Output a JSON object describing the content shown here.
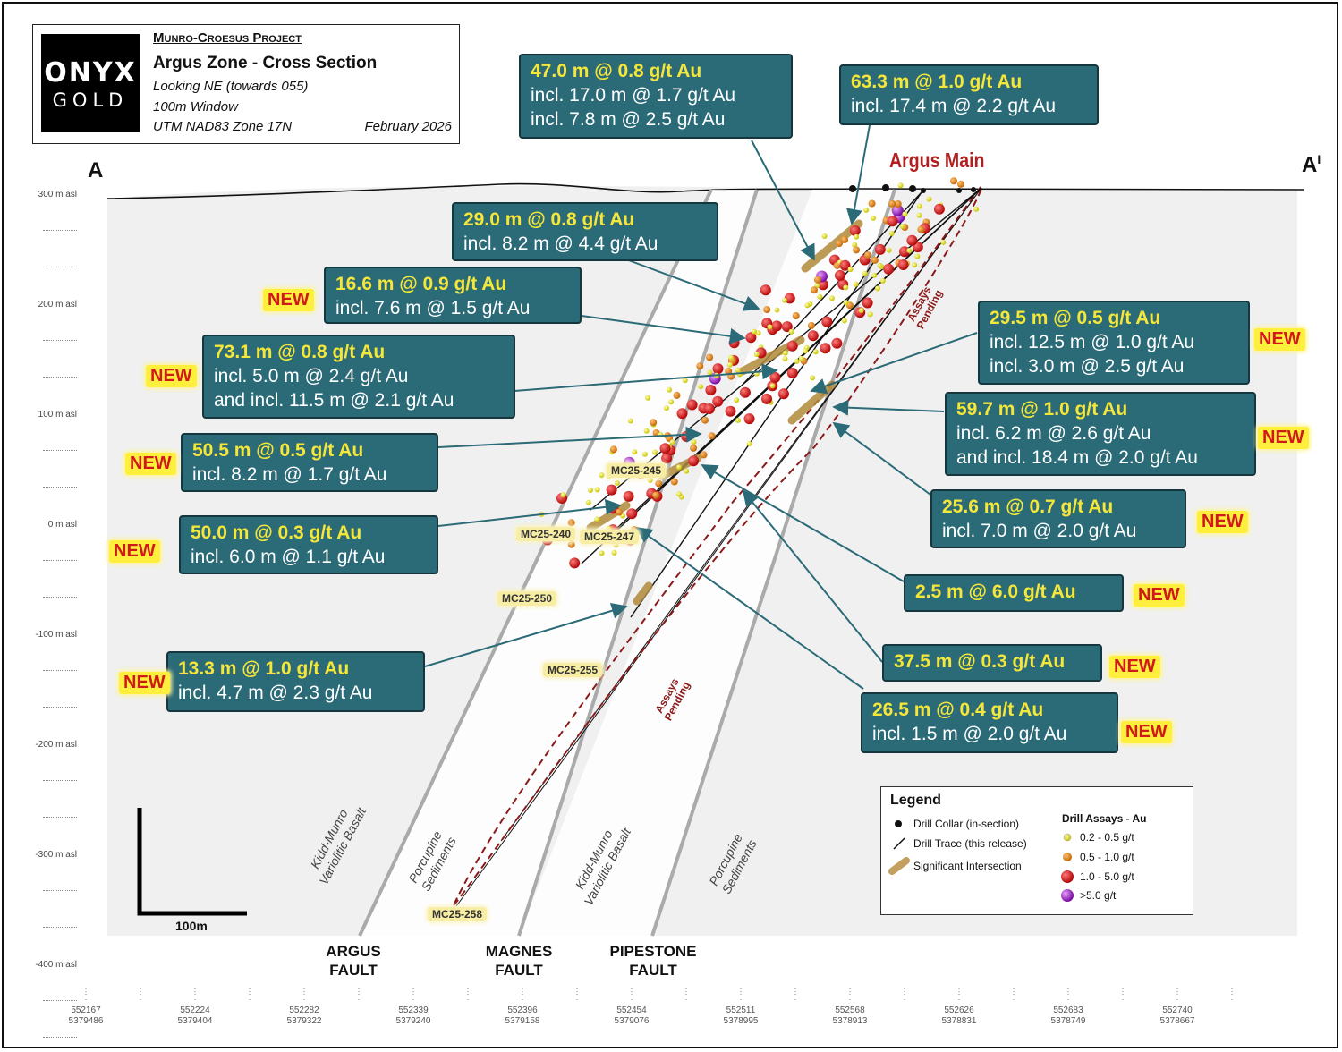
{
  "title_block": {
    "logo_line1": "ONYX",
    "logo_line2": "GOLD",
    "project": "Munro-Croesus Project",
    "title": "Argus Zone - Cross Section",
    "line1": "Looking NE (towards 055)",
    "line2": "100m Window",
    "line3": "UTM NAD83 Zone 17N",
    "date": "February 2026"
  },
  "section": {
    "left": "A",
    "right": "A",
    "right_mark": "I"
  },
  "zone_label": "Argus Main",
  "elevations": [
    "300 m asl",
    "200 m asl",
    "100 m asl",
    "0 m asl",
    "-100 m asl",
    "-200 m asl",
    "-300 m asl",
    "-400 m asl"
  ],
  "coordinates": [
    {
      "e": "552167",
      "n": "5379486"
    },
    {
      "e": "552224",
      "n": "5379404"
    },
    {
      "e": "552282",
      "n": "5379322"
    },
    {
      "e": "552339",
      "n": "5379240"
    },
    {
      "e": "552396",
      "n": "5379158"
    },
    {
      "e": "552454",
      "n": "5379076"
    },
    {
      "e": "552511",
      "n": "5378995"
    },
    {
      "e": "552568",
      "n": "5378913"
    },
    {
      "e": "552626",
      "n": "5378831"
    },
    {
      "e": "552683",
      "n": "5378749"
    },
    {
      "e": "552740",
      "n": "5378667"
    }
  ],
  "callouts": [
    {
      "id": "c1",
      "lines": [
        "47.0 m @ 0.8 g/t Au",
        "incl. 17.0 m @ 1.7 g/t Au",
        "incl. 7.8 m @ 2.5 g/t Au"
      ],
      "new": ""
    },
    {
      "id": "c2",
      "lines": [
        "63.3 m @ 1.0 g/t Au",
        "incl. 17.4 m @ 2.2 g/t Au"
      ],
      "new": ""
    },
    {
      "id": "c3",
      "lines": [
        "29.0 m @ 0.8 g/t Au",
        "incl. 8.2 m @ 4.4 g/t Au"
      ],
      "new": ""
    },
    {
      "id": "c4",
      "lines": [
        "16.6 m @ 0.9 g/t Au",
        "incl. 7.6 m @ 1.5 g/t Au"
      ],
      "new": "NEW"
    },
    {
      "id": "c5",
      "lines": [
        "73.1 m @ 0.8 g/t Au",
        "incl. 5.0 m @ 2.4 g/t Au",
        "and incl. 11.5 m @ 2.1 g/t Au"
      ],
      "new": "NEW"
    },
    {
      "id": "c6",
      "lines": [
        "50.5 m @ 0.5 g/t Au",
        "incl. 8.2 m @ 1.7 g/t Au"
      ],
      "new": "NEW"
    },
    {
      "id": "c7",
      "lines": [
        "50.0 m @ 0.3 g/t Au",
        "incl. 6.0 m @ 1.1 g/t Au"
      ],
      "new": "NEW"
    },
    {
      "id": "c8",
      "lines": [
        "13.3 m @ 1.0 g/t Au",
        "incl. 4.7 m @ 2.3 g/t Au"
      ],
      "new": "NEW"
    },
    {
      "id": "c9",
      "lines": [
        "29.5 m @ 0.5 g/t Au",
        "incl. 12.5 m @ 1.0 g/t Au",
        "incl. 3.0 m @ 2.5 g/t Au"
      ],
      "new": "NEW"
    },
    {
      "id": "c10",
      "lines": [
        "59.7 m @ 1.0 g/t Au",
        "incl. 6.2 m @ 2.6 g/t Au",
        "and incl. 18.4 m @ 2.0 g/t Au"
      ],
      "new": "NEW"
    },
    {
      "id": "c11",
      "lines": [
        "25.6 m @ 0.7 g/t Au",
        "incl. 7.0 m @ 2.0 g/t Au"
      ],
      "new": "NEW"
    },
    {
      "id": "c12",
      "lines": [
        "2.5 m @ 6.0 g/t Au"
      ],
      "new": "NEW"
    },
    {
      "id": "c13",
      "lines": [
        "37.5 m @ 0.3 g/t Au"
      ],
      "new": "NEW"
    },
    {
      "id": "c14",
      "lines": [
        "26.5 m @ 0.4 g/t Au",
        "incl. 1.5 m @ 2.0 g/t Au"
      ],
      "new": "NEW"
    }
  ],
  "holes": [
    "MC25-245",
    "MC25-240",
    "MC25-247",
    "MC25-250",
    "MC25-255",
    "MC25-258"
  ],
  "faults": [
    {
      "line1": "ARGUS",
      "line2": "FAULT"
    },
    {
      "line1": "MAGNES",
      "line2": "FAULT"
    },
    {
      "line1": "PIPESTONE",
      "line2": "FAULT"
    }
  ],
  "lithology": [
    {
      "line1": "Kidd-Munro",
      "line2": "Variolitic Basalt"
    },
    {
      "line1": "Porcupine",
      "line2": "Sediments"
    },
    {
      "line1": "Kidd-Munro",
      "line2": "Variolitic Basalt"
    },
    {
      "line1": "Porcupine",
      "line2": "Sediments"
    }
  ],
  "pending": {
    "line1": "Assays",
    "line2": "Pending"
  },
  "scale_bar": {
    "label": "100m"
  },
  "legend": {
    "title": "Legend",
    "collar": "Drill Collar (in-section)",
    "trace": "Drill Trace (this release)",
    "intersection": "Significant Intersection",
    "assay_title": "Drill Assays - Au",
    "assays": [
      {
        "label": "0.2 - 0.5 g/t",
        "color": "#e8e82a"
      },
      {
        "label": "0.5 - 1.0 g/t",
        "color": "#e68a1e"
      },
      {
        "label": "1.0 - 5.0 g/t",
        "color": "#e02020"
      },
      {
        "label": ">5.0 g/t",
        "color": "#a020c8"
      }
    ]
  },
  "colors": {
    "callout_fill": "#2b6a77",
    "callout_highlight": "#f5e63a",
    "new_text": "#d01a1a",
    "new_fill": "#ffef3d",
    "zone_text": "#b21f1f"
  }
}
